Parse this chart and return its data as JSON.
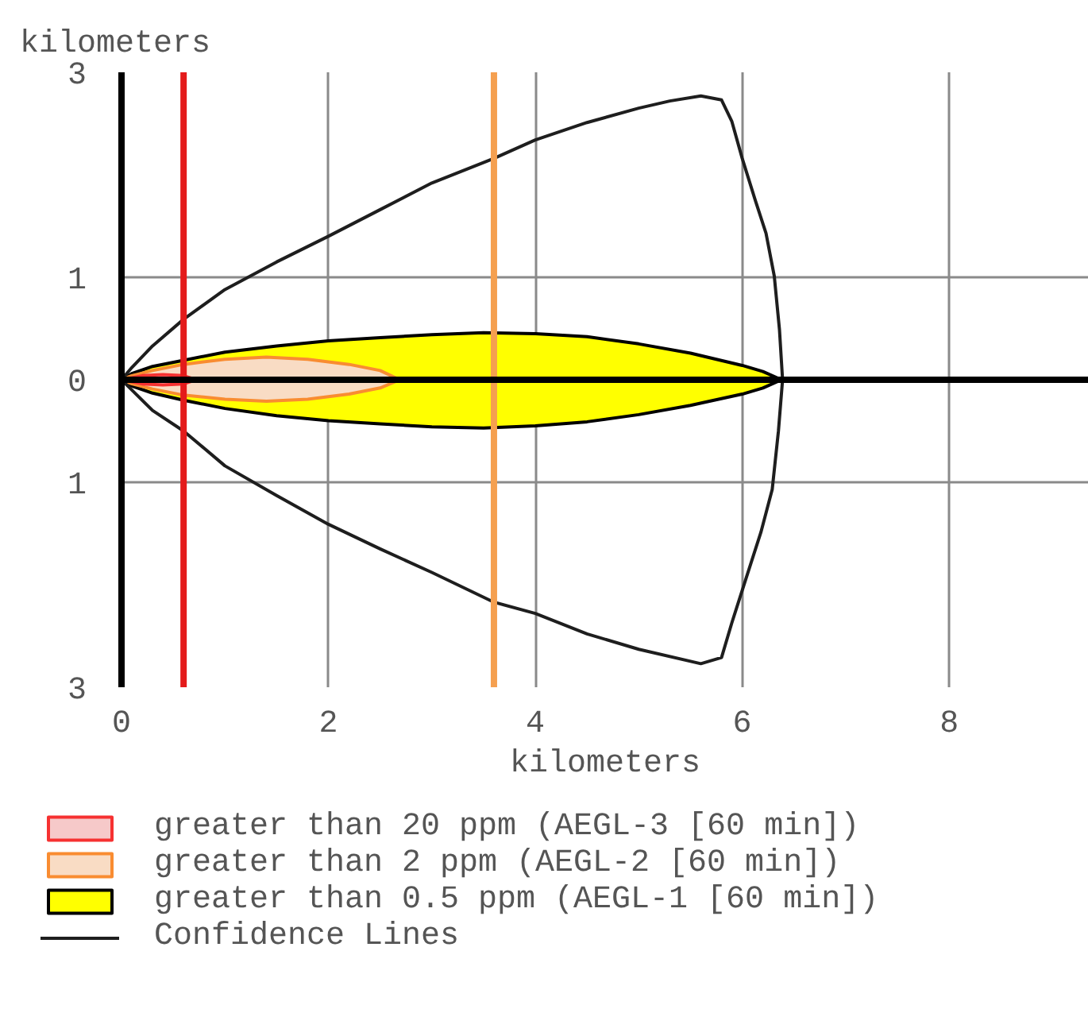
{
  "chart_data": {
    "type": "area",
    "xlabel": "kilometers",
    "ylabel": "kilometers",
    "xlim": [
      0,
      9.35
    ],
    "ylim": [
      -3,
      3
    ],
    "xticks": [
      0,
      2,
      4,
      6,
      8
    ],
    "yticks": [
      {
        "value": -3,
        "label": "3"
      },
      {
        "value": -1,
        "label": "1"
      },
      0,
      1,
      3
    ],
    "grid": true,
    "legend": "bottom",
    "series": [
      {
        "name": "greater than 20 ppm (AEGL-3 [60 min])",
        "color": "#f6c9c9",
        "x": [
          0,
          0.2,
          0.4,
          0.6,
          0.72,
          0.6,
          0.4,
          0.2,
          0
        ],
        "values": [
          0,
          0.04,
          0.05,
          0.04,
          0,
          -0.04,
          -0.05,
          -0.04,
          0
        ]
      },
      {
        "name": "greater than 2 ppm (AEGL-2 [60 min])",
        "color": "#f9dcc4",
        "x": [
          0,
          0.1,
          0.3,
          0.6,
          1,
          1.4,
          1.8,
          2.2,
          2.5,
          2.69,
          2.5,
          2.2,
          1.8,
          1.4,
          1,
          0.6,
          0.3,
          0.1,
          0
        ],
        "values": [
          0,
          0.04,
          0.09,
          0.15,
          0.2,
          0.22,
          0.2,
          0.15,
          0.09,
          0,
          -0.08,
          -0.14,
          -0.19,
          -0.21,
          -0.19,
          -0.15,
          -0.09,
          -0.04,
          0
        ]
      },
      {
        "name": "greater than 0.5 ppm (AEGL-1 [60 min])",
        "color": "#ffff00",
        "x": [
          0,
          0.1,
          0.3,
          0.6,
          1,
          1.5,
          2,
          2.5,
          3,
          3.5,
          4,
          4.5,
          5,
          5.5,
          6,
          6.2,
          6.38,
          6.2,
          6,
          5.5,
          5,
          4.5,
          4,
          3.5,
          3,
          2.5,
          2,
          1.5,
          1,
          0.6,
          0.3,
          0.1,
          0
        ],
        "values": [
          0,
          0.06,
          0.13,
          0.19,
          0.27,
          0.33,
          0.38,
          0.41,
          0.44,
          0.46,
          0.45,
          0.42,
          0.35,
          0.26,
          0.14,
          0.08,
          0,
          -0.08,
          -0.14,
          -0.25,
          -0.34,
          -0.41,
          -0.45,
          -0.47,
          -0.46,
          -0.43,
          -0.4,
          -0.35,
          -0.28,
          -0.2,
          -0.13,
          -0.06,
          0
        ]
      },
      {
        "name": "Confidence Lines",
        "type": "line",
        "color": "#1e1e1e",
        "x": [
          0,
          0.1,
          0.3,
          0.6,
          1,
          1.5,
          2,
          2.5,
          3,
          3.6,
          4,
          4.5,
          5,
          5.3,
          5.6,
          5.8,
          5.9,
          6,
          6.13,
          6.23,
          6.31,
          6.36,
          6.39,
          null,
          0,
          0.1,
          0.3,
          0.6,
          1,
          1.5,
          2,
          2.5,
          3,
          3.6,
          4,
          4.5,
          5,
          5.6,
          5.8,
          5.9,
          6.03,
          6.18,
          6.29,
          6.35,
          6.39
        ],
        "values": [
          0,
          0.12,
          0.33,
          0.59,
          0.88,
          1.15,
          1.4,
          1.66,
          1.92,
          2.16,
          2.34,
          2.51,
          2.65,
          2.72,
          2.77,
          2.73,
          2.52,
          2.16,
          1.74,
          1.43,
          1.01,
          0.49,
          0,
          null,
          0,
          -0.1,
          -0.3,
          -0.5,
          -0.84,
          -1.13,
          -1.41,
          -1.65,
          -1.88,
          -2.17,
          -2.28,
          -2.48,
          -2.63,
          -2.77,
          -2.71,
          -2.37,
          -1.96,
          -1.49,
          -1.07,
          -0.5,
          0
        ]
      }
    ],
    "ref_lines": [
      {
        "axis": "x",
        "value": 0.6,
        "color": "#e41b1b"
      },
      {
        "axis": "x",
        "value": 3.6,
        "color": "#f5a050"
      },
      {
        "axis": "y",
        "value": 0,
        "color": "#000000"
      }
    ]
  }
}
